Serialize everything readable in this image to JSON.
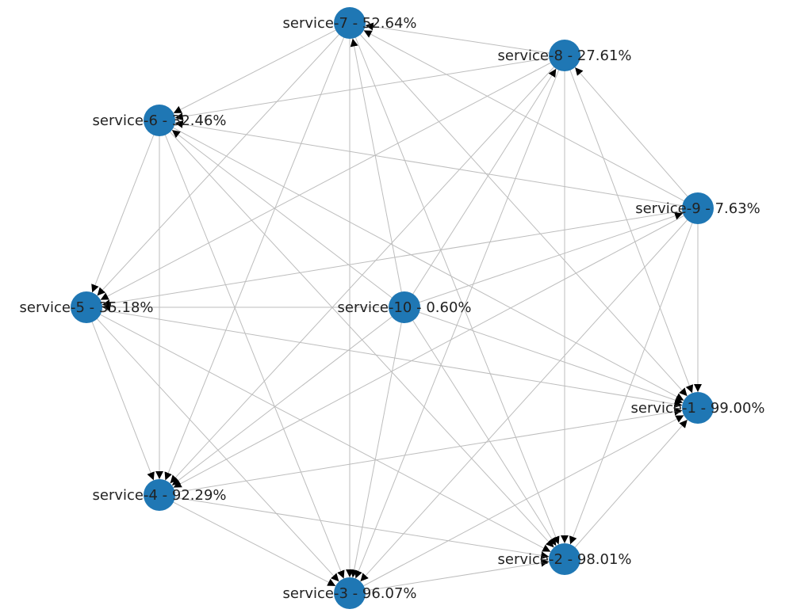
{
  "nodes": [
    {
      "label": "service-1 - 99.00%"
    },
    {
      "label": "service-2 - 98.01%"
    },
    {
      "label": "service-3 - 96.07%"
    },
    {
      "label": "service-4 - 92.29%"
    },
    {
      "label": "service-5 - 35.18%"
    },
    {
      "label": "service-6 - 32.46%"
    },
    {
      "label": "service-7 - 52.64%"
    },
    {
      "label": "service-8 - 27.61%"
    },
    {
      "label": "service-9 - 7.63%"
    },
    {
      "label": "service-10 - 0.60%"
    }
  ]
}
